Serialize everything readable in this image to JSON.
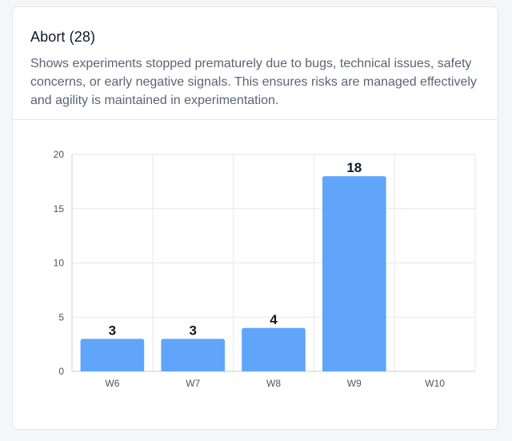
{
  "card": {
    "title": "Abort (28)",
    "description": "Shows experiments stopped prematurely due to bugs, technical issues, safety concerns, or early negative signals. This ensures risks are managed effectively and agility is maintained in experimentation."
  },
  "colors": {
    "bar": "#60a5fa",
    "grid": "#e5e7eb",
    "axis": "#c8ced8",
    "tick_text": "#4b5563",
    "value_text": "#111827"
  },
  "chart_data": {
    "type": "bar",
    "categories": [
      "W6",
      "W7",
      "W8",
      "W9",
      "W10"
    ],
    "values": [
      3,
      3,
      4,
      18,
      0
    ],
    "data_labels": [
      "3",
      "3",
      "4",
      "18",
      ""
    ],
    "yticks": [
      0,
      5,
      10,
      15,
      20
    ],
    "ylim": [
      0,
      20
    ],
    "grid": true,
    "title": "",
    "xlabel": "",
    "ylabel": ""
  }
}
